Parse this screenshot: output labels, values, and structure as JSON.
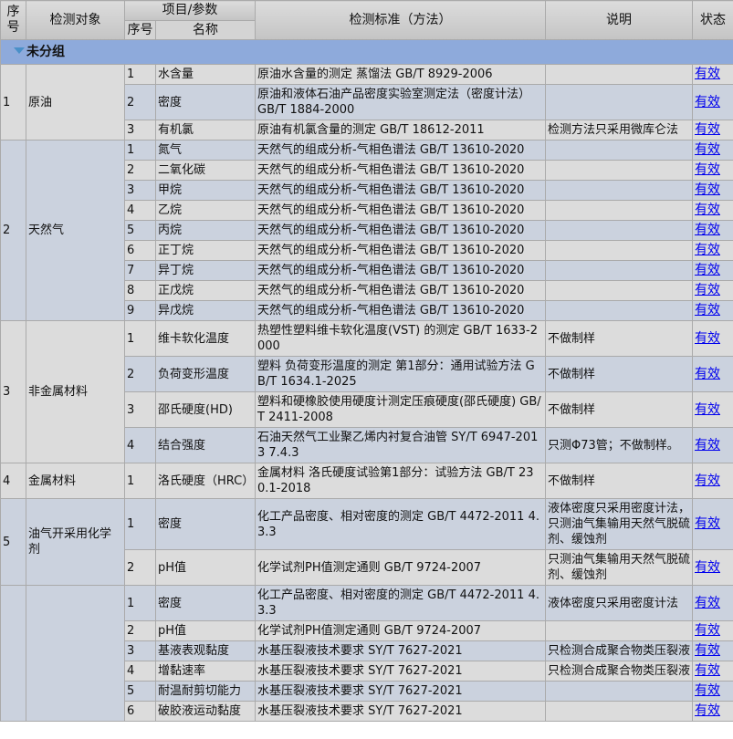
{
  "header": {
    "seq": "序号",
    "object": "检测对象",
    "item_group": "项目/参数",
    "item_seq": "序号",
    "item_name": "名称",
    "standard": "检测标准（方法）",
    "note": "说明",
    "status": "状态"
  },
  "group_label": "未分组",
  "groups": [
    {
      "seq": "1",
      "object": "原油",
      "items": [
        {
          "seq": "1",
          "name": "水含量",
          "standard": "原油水含量的测定 蒸馏法 GB/T 8929-2006",
          "note": "",
          "status": "有效"
        },
        {
          "seq": "2",
          "name": "密度",
          "standard": "原油和液体石油产品密度实验室测定法（密度计法） GB/T 1884-2000",
          "note": "",
          "status": "有效"
        },
        {
          "seq": "3",
          "name": "有机氯",
          "standard": "原油有机氯含量的测定 GB/T 18612-2011",
          "note": "检测方法只采用微库仑法",
          "status": "有效"
        }
      ]
    },
    {
      "seq": "2",
      "object": "天然气",
      "items": [
        {
          "seq": "1",
          "name": "氮气",
          "standard": "天然气的组成分析-气相色谱法 GB/T 13610-2020",
          "note": "",
          "status": "有效"
        },
        {
          "seq": "2",
          "name": "二氧化碳",
          "standard": "天然气的组成分析-气相色谱法 GB/T 13610-2020",
          "note": "",
          "status": "有效"
        },
        {
          "seq": "3",
          "name": "甲烷",
          "standard": "天然气的组成分析-气相色谱法 GB/T 13610-2020",
          "note": "",
          "status": "有效"
        },
        {
          "seq": "4",
          "name": "乙烷",
          "standard": "天然气的组成分析-气相色谱法 GB/T 13610-2020",
          "note": "",
          "status": "有效"
        },
        {
          "seq": "5",
          "name": "丙烷",
          "standard": "天然气的组成分析-气相色谱法 GB/T 13610-2020",
          "note": "",
          "status": "有效"
        },
        {
          "seq": "6",
          "name": "正丁烷",
          "standard": "天然气的组成分析-气相色谱法 GB/T 13610-2020",
          "note": "",
          "status": "有效"
        },
        {
          "seq": "7",
          "name": "异丁烷",
          "standard": "天然气的组成分析-气相色谱法 GB/T 13610-2020",
          "note": "",
          "status": "有效"
        },
        {
          "seq": "8",
          "name": "正戊烷",
          "standard": "天然气的组成分析-气相色谱法 GB/T 13610-2020",
          "note": "",
          "status": "有效"
        },
        {
          "seq": "9",
          "name": "异戊烷",
          "standard": "天然气的组成分析-气相色谱法 GB/T 13610-2020",
          "note": "",
          "status": "有效"
        }
      ]
    },
    {
      "seq": "3",
      "object": "非金属材料",
      "items": [
        {
          "seq": "1",
          "name": "维卡软化温度",
          "standard": "热塑性塑料维卡软化温度(VST) 的测定 GB/T 1633-2000",
          "note": "不做制样",
          "status": "有效"
        },
        {
          "seq": "2",
          "name": "负荷变形温度",
          "standard": "塑料 负荷变形温度的测定 第1部分：通用试验方法 GB/T 1634.1-2025",
          "note": "不做制样",
          "status": "有效"
        },
        {
          "seq": "3",
          "name": "邵氏硬度(HD)",
          "standard": "塑料和硬橡胶使用硬度计测定压痕硬度(邵氏硬度) GB/T 2411-2008",
          "note": "不做制样",
          "status": "有效"
        },
        {
          "seq": "4",
          "name": "结合强度",
          "standard": "石油天然气工业聚乙烯内衬复合油管 SY/T 6947-2013 7.4.3",
          "note": "只测Φ73管；不做制样。",
          "status": "有效"
        }
      ]
    },
    {
      "seq": "4",
      "object": "金属材料",
      "items": [
        {
          "seq": "1",
          "name": "洛氏硬度（HRC）",
          "standard": "金属材料 洛氏硬度试验第1部分：试验方法 GB/T 230.1-2018",
          "note": "不做制样",
          "status": "有效"
        }
      ]
    },
    {
      "seq": "5",
      "object": "油气开采用化学剂",
      "items": [
        {
          "seq": "1",
          "name": "密度",
          "standard": "化工产品密度、相对密度的测定 GB/T 4472-2011 4.3.3",
          "note": "液体密度只采用密度计法，只测油气集输用天然气脱硫剂、缓蚀剂",
          "status": "有效"
        },
        {
          "seq": "2",
          "name": "pH值",
          "standard": "化学试剂PH值测定通则 GB/T 9724-2007",
          "note": "只测油气集输用天然气脱硫剂、缓蚀剂",
          "status": "有效"
        }
      ]
    },
    {
      "seq": "",
      "object": "",
      "items": [
        {
          "seq": "1",
          "name": "密度",
          "standard": "化工产品密度、相对密度的测定 GB/T 4472-2011 4.3.3",
          "note": "液体密度只采用密度计法",
          "status": "有效"
        },
        {
          "seq": "2",
          "name": "pH值",
          "standard": "化学试剂PH值测定通则 GB/T 9724-2007",
          "note": "",
          "status": "有效"
        },
        {
          "seq": "3",
          "name": "基液表观黏度",
          "standard": "水基压裂液技术要求 SY/T 7627-2021",
          "note": "只检测合成聚合物类压裂液",
          "status": "有效"
        },
        {
          "seq": "4",
          "name": "增黏速率",
          "standard": "水基压裂液技术要求 SY/T 7627-2021",
          "note": "只检测合成聚合物类压裂液",
          "status": "有效"
        },
        {
          "seq": "5",
          "name": "耐温耐剪切能力",
          "standard": "水基压裂液技术要求 SY/T 7627-2021",
          "note": "",
          "status": "有效"
        },
        {
          "seq": "6",
          "name": "破胶液运动黏度",
          "standard": "水基压裂液技术要求 SY/T 7627-2021",
          "note": "",
          "status": "有效"
        }
      ]
    }
  ]
}
